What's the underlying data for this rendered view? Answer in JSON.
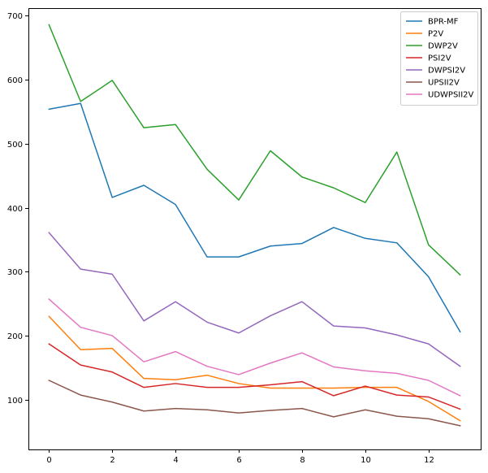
{
  "chart_data": {
    "type": "line",
    "title": "",
    "xlabel": "",
    "ylabel": "",
    "x": [
      0,
      1,
      2,
      3,
      4,
      5,
      6,
      7,
      8,
      9,
      10,
      11,
      12,
      13
    ],
    "xlim": [
      -0.65,
      13.65
    ],
    "ylim": [
      22,
      712
    ],
    "xticks": [
      0,
      2,
      4,
      6,
      8,
      10,
      12
    ],
    "yticks": [
      100,
      200,
      300,
      400,
      500,
      600,
      700
    ],
    "grid": false,
    "legend": {
      "position": "upper right"
    },
    "series": [
      {
        "name": "BPR-MF",
        "color": "#1f77b4",
        "values": [
          554,
          563,
          416,
          435,
          405,
          323,
          323,
          340,
          344,
          369,
          352,
          345,
          292,
          206
        ]
      },
      {
        "name": "P2V",
        "color": "#ff7f0e",
        "values": [
          230,
          178,
          180,
          133,
          131,
          138,
          125,
          118,
          118,
          118,
          119,
          119,
          97,
          67
        ]
      },
      {
        "name": "DWP2V",
        "color": "#2ca02c",
        "values": [
          686,
          566,
          599,
          525,
          530,
          460,
          412,
          489,
          448,
          431,
          408,
          487,
          342,
          295
        ]
      },
      {
        "name": "PSI2V",
        "color": "#d62728",
        "values": [
          187,
          154,
          143,
          119,
          125,
          119,
          119,
          123,
          128,
          106,
          121,
          107,
          104,
          85
        ]
      },
      {
        "name": "DWPSI2V",
        "color": "#9467bd",
        "values": [
          361,
          304,
          296,
          223,
          253,
          221,
          204,
          231,
          253,
          215,
          212,
          201,
          187,
          152
        ]
      },
      {
        "name": "UPSII2V",
        "color": "#8c564b",
        "values": [
          130,
          107,
          96,
          82,
          86,
          84,
          79,
          83,
          86,
          73,
          84,
          74,
          70,
          59
        ]
      },
      {
        "name": "UDWPSII2V",
        "color": "#e377c2",
        "values": [
          257,
          213,
          200,
          159,
          175,
          152,
          139,
          157,
          173,
          151,
          145,
          141,
          130,
          106
        ]
      }
    ]
  }
}
